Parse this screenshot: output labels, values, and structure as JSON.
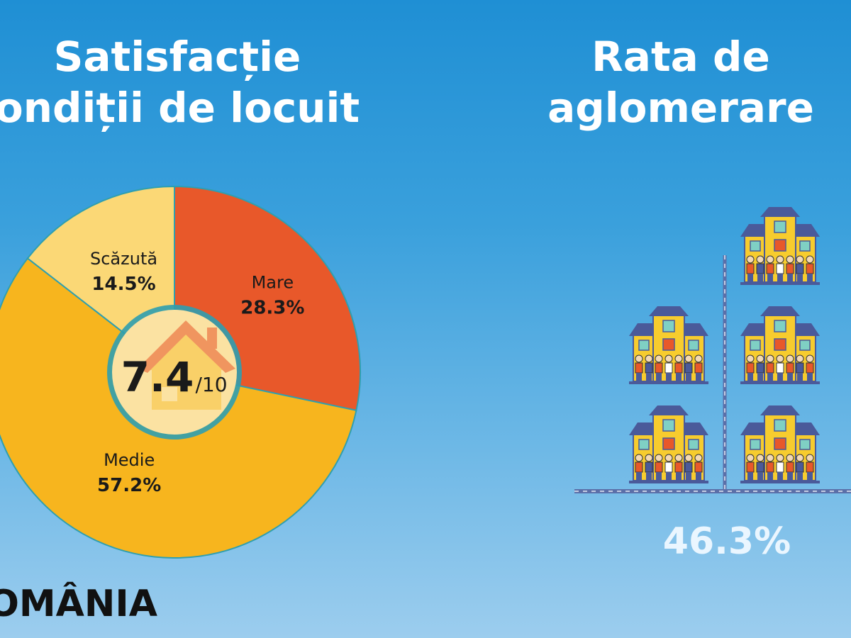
{
  "left_panel": {
    "title_line1": "Satisfacție",
    "title_line2": "ondiții de locuit",
    "score_value": "7.4",
    "score_max": "/10"
  },
  "right_panel": {
    "title_line1": "Rata de",
    "title_line2": "aglomerare",
    "value": "46.3%"
  },
  "country": "OMÂNIA",
  "icons": [
    "house-icon",
    "house-with-family-icon"
  ],
  "chart_data": [
    {
      "type": "pie",
      "slices": [
        {
          "label": "Mare",
          "value": 28.3,
          "display": "28.3%",
          "color": "#e8582a"
        },
        {
          "label": "Medie",
          "value": 57.2,
          "display": "57.2%",
          "color": "#f7b51e"
        },
        {
          "label": "Scăzută",
          "value": 14.5,
          "display": "14.5%",
          "color": "#fbd876"
        }
      ],
      "start": "12 o'clock, clockwise",
      "center_label": "7.4/10"
    }
  ],
  "colors": {
    "background_top": "#1f8fd4",
    "background_bottom": "#9ccdee",
    "house_wall": "#f7cc2e",
    "house_roof": "#4a5a9a"
  }
}
